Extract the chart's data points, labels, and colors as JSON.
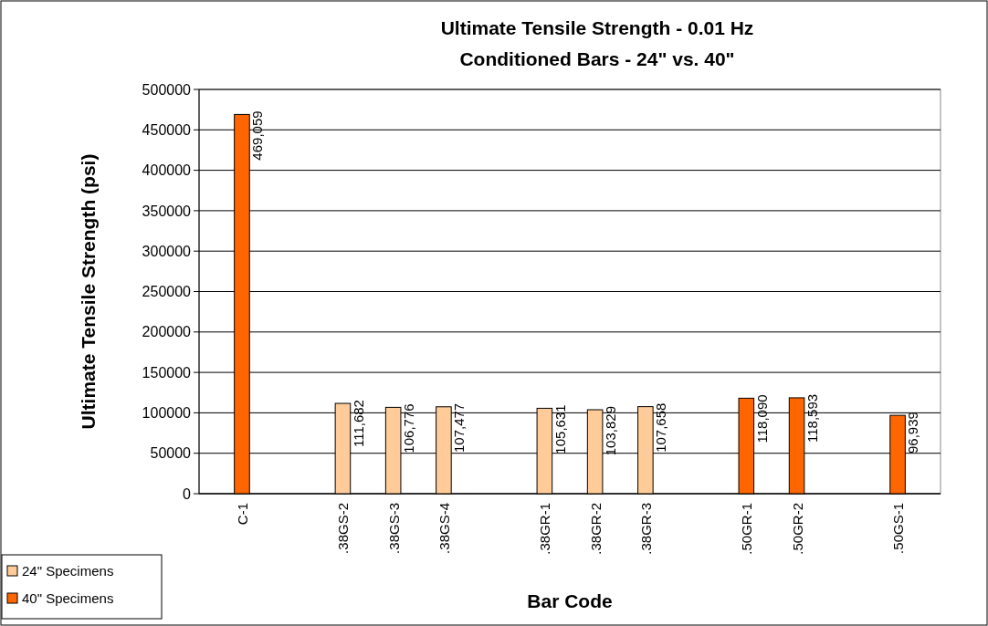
{
  "chart_data": {
    "type": "bar",
    "title": "Ultimate Tensile Strength - 0.01 Hz",
    "subtitle": "Conditioned Bars - 24\" vs. 40\"",
    "xlabel": "Bar Code",
    "ylabel": "Ultimate Tensile Strength (psi)",
    "categories": [
      "C-1",
      null,
      ".38GS-2",
      ".38GS-3",
      ".38GS-4",
      null,
      ".38GR-1",
      ".38GR-2",
      ".38GR-3",
      null,
      ".50GR-1",
      ".50GR-2",
      null,
      ".50GS-1"
    ],
    "series": [
      {
        "name": "24\" Specimens",
        "color": "#ffcc99",
        "values": [
          null,
          null,
          111682,
          106776,
          107477,
          null,
          105631,
          103829,
          107658,
          null,
          null,
          null,
          null,
          null
        ],
        "value_labels": [
          null,
          null,
          "111,682",
          "106,776",
          "107,477",
          null,
          "105,631",
          "103,829",
          "107,658",
          null,
          null,
          null,
          null,
          null
        ]
      },
      {
        "name": "40\" Specimens",
        "color": "#ff6600",
        "values": [
          469059,
          null,
          null,
          null,
          null,
          null,
          null,
          null,
          null,
          null,
          118090,
          118593,
          null,
          96939
        ],
        "value_labels": [
          "469,059",
          null,
          null,
          null,
          null,
          null,
          null,
          null,
          null,
          null,
          "118,090",
          "118,593",
          null,
          "96,939"
        ]
      }
    ],
    "ylim": [
      0,
      500000
    ],
    "yticks": [
      0,
      50000,
      100000,
      150000,
      200000,
      250000,
      300000,
      350000,
      400000,
      450000,
      500000
    ],
    "grid": "y",
    "legend": "bottom left"
  }
}
